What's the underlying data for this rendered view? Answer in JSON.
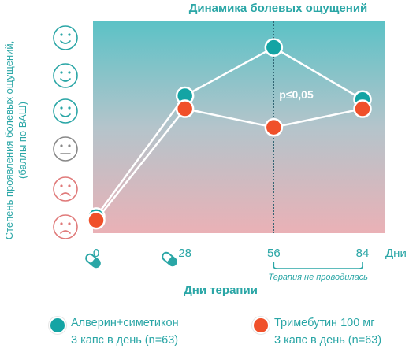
{
  "chart_data": {
    "type": "line",
    "title": "Динамика болевых ощущений",
    "xlabel": "Дни терапии",
    "ylabel_line1": "Степень проявления болевых ощущений,",
    "ylabel_line2": "(баллы по ВАШ)",
    "x_unit": "Дни",
    "x_ticks": [
      "0",
      "28",
      "56",
      "84"
    ],
    "x": [
      0,
      28,
      56,
      84
    ],
    "xlim": [
      0,
      84
    ],
    "ylim": [
      0,
      5
    ],
    "y_tick_icons": [
      "sad-face-icon",
      "sad-face-icon",
      "neutral-face-icon",
      "smile-face-icon",
      "smile-face-icon",
      "smile-face-icon"
    ],
    "series": [
      {
        "name": "Алверин+симетикон",
        "values": [
          0.15,
          3.4,
          4.7,
          3.3
        ],
        "color": "#14a4a4"
      },
      {
        "name": "Тримебутин 100 мг",
        "values": [
          0.05,
          3.05,
          2.55,
          3.05
        ],
        "color": "#f0502a"
      }
    ],
    "annotation": "p≤0,05",
    "bracket_label": "Терапия не проводилась",
    "bracket_range": [
      56,
      84
    ],
    "vline_x": 56,
    "grid": false,
    "legend_position": "bottom"
  },
  "legend": {
    "items": [
      {
        "line1": "Алверин+симетикон",
        "line2": "3 капс в день (n=63)",
        "color": "#14a4a4"
      },
      {
        "line1": "Тримебутин 100 мг",
        "line2": "3 капс в день (n=63)",
        "color": "#f0502a"
      }
    ]
  }
}
